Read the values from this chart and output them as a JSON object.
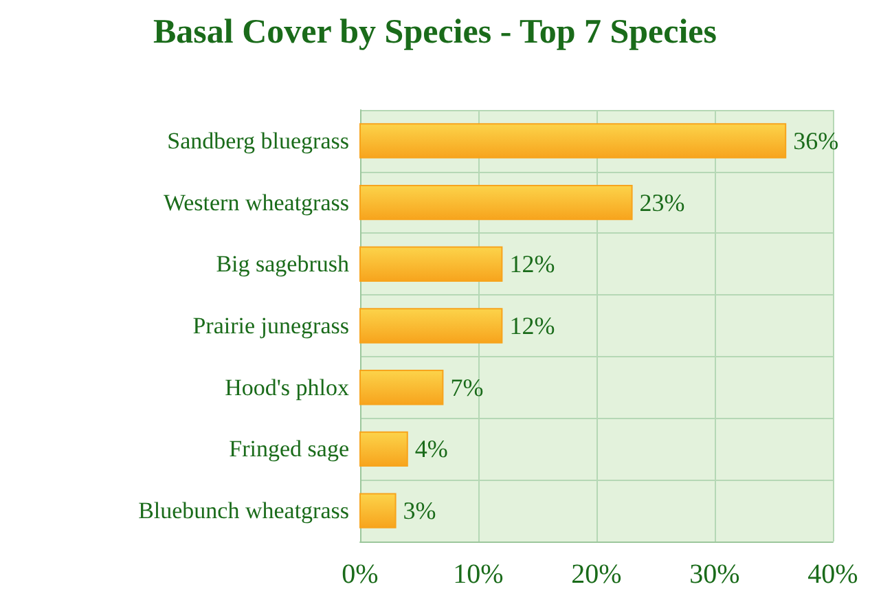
{
  "chart_data": {
    "type": "bar",
    "orientation": "horizontal",
    "title": "Basal Cover by Species - Top 7 Species",
    "categories": [
      "Sandberg bluegrass",
      "Western wheatgrass",
      "Big sagebrush",
      "Prairie junegrass",
      "Hood's phlox",
      "Fringed sage",
      "Bluebunch wheatgrass"
    ],
    "values": [
      36,
      23,
      12,
      12,
      7,
      4,
      3
    ],
    "value_labels": [
      "36%",
      "23%",
      "12%",
      "12%",
      "7%",
      "4%",
      "3%"
    ],
    "color": "#f7a41d",
    "xlim": [
      0,
      40
    ],
    "xticks": [
      {
        "value": 0,
        "label": "0%"
      },
      {
        "value": 10,
        "label": "10%"
      },
      {
        "value": 20,
        "label": "20%"
      },
      {
        "value": 30,
        "label": "30%"
      },
      {
        "value": 40,
        "label": "40%"
      }
    ],
    "grid": true
  }
}
